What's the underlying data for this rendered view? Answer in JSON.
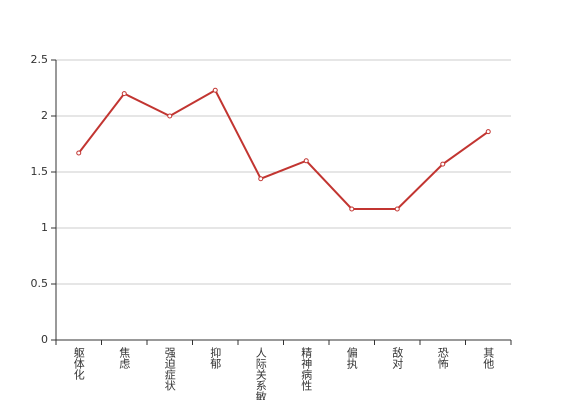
{
  "chart_data": {
    "type": "line",
    "categories": [
      "躯体化",
      "焦虑",
      "强迫症状",
      "抑郁",
      "人际关系敏感",
      "精神病性",
      "偏执",
      "敌对",
      "恐怖",
      "其他"
    ],
    "values": [
      1.67,
      2.2,
      2.0,
      2.23,
      1.44,
      1.6,
      1.17,
      1.17,
      1.57,
      1.86
    ],
    "color": "#c23531",
    "ylim": [
      0,
      2.5
    ],
    "yticks": [
      0,
      0.5,
      1,
      1.5,
      2,
      2.5
    ],
    "grid": true
  }
}
